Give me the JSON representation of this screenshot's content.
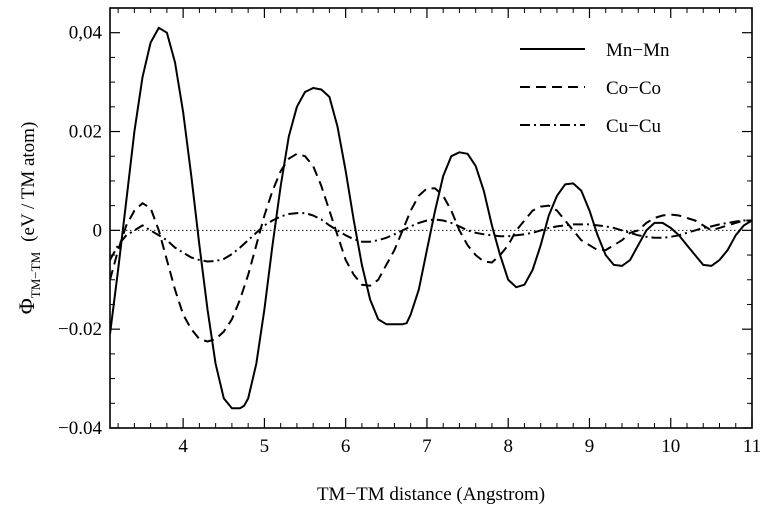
{
  "chart_data": {
    "type": "line",
    "xlabel": "TM−TM distance (Angstrom)",
    "ylabel": {
      "symbol": "Φ",
      "subscript": "TM−TM",
      "unit": "(eV / TM atom)"
    },
    "xlim": [
      3.1,
      11
    ],
    "ylim": [
      -0.04,
      0.045
    ],
    "x_ticks": [
      4,
      5,
      6,
      7,
      8,
      9,
      10,
      11
    ],
    "y_ticks": [
      -0.04,
      -0.02,
      0,
      0.02,
      0.04
    ],
    "x_tick_labels": [
      "4",
      "5",
      "6",
      "7",
      "8",
      "9",
      "10",
      "11"
    ],
    "y_tick_labels": [
      "−0.04",
      "−0.02",
      "0",
      "0.02",
      "0,04"
    ],
    "zero_line": true,
    "grid": false,
    "legend_position": "top-right",
    "series": [
      {
        "name": "Mn−Mn",
        "style": "solid",
        "color": "#000000",
        "x": [
          3.1,
          3.2,
          3.3,
          3.4,
          3.5,
          3.6,
          3.7,
          3.8,
          3.9,
          4.0,
          4.1,
          4.2,
          4.3,
          4.4,
          4.5,
          4.6,
          4.7,
          4.75,
          4.8,
          4.9,
          5.0,
          5.1,
          5.2,
          5.3,
          5.4,
          5.5,
          5.6,
          5.7,
          5.8,
          5.9,
          6.0,
          6.1,
          6.2,
          6.3,
          6.4,
          6.5,
          6.6,
          6.7,
          6.75,
          6.8,
          6.9,
          7.0,
          7.1,
          7.2,
          7.3,
          7.4,
          7.5,
          7.6,
          7.7,
          7.8,
          7.9,
          8.0,
          8.1,
          8.2,
          8.3,
          8.4,
          8.5,
          8.6,
          8.7,
          8.8,
          8.9,
          9.0,
          9.1,
          9.2,
          9.3,
          9.4,
          9.5,
          9.6,
          9.7,
          9.8,
          9.9,
          10.0,
          10.1,
          10.2,
          10.3,
          10.4,
          10.5,
          10.6,
          10.7,
          10.8,
          10.9,
          11.0
        ],
        "y": [
          -0.021,
          -0.008,
          0.006,
          0.02,
          0.031,
          0.038,
          0.041,
          0.04,
          0.034,
          0.024,
          0.011,
          -0.003,
          -0.016,
          -0.027,
          -0.034,
          -0.036,
          -0.036,
          -0.0355,
          -0.034,
          -0.027,
          -0.016,
          -0.003,
          0.009,
          0.019,
          0.025,
          0.028,
          0.0288,
          0.0285,
          0.027,
          0.021,
          0.012,
          0.002,
          -0.007,
          -0.014,
          -0.018,
          -0.019,
          -0.019,
          -0.019,
          -0.0188,
          -0.017,
          -0.012,
          -0.004,
          0.004,
          0.011,
          0.015,
          0.0158,
          0.0155,
          0.013,
          0.008,
          0.001,
          -0.005,
          -0.01,
          -0.0115,
          -0.011,
          -0.008,
          -0.003,
          0.003,
          0.007,
          0.0093,
          0.0095,
          0.008,
          0.004,
          -0.001,
          -0.005,
          -0.007,
          -0.0072,
          -0.006,
          -0.003,
          0.0,
          0.0015,
          0.0015,
          0.0005,
          -0.001,
          -0.003,
          -0.005,
          -0.007,
          -0.0072,
          -0.006,
          -0.004,
          -0.001,
          0.001,
          0.002
        ]
      },
      {
        "name": "Co−Co",
        "style": "dashed",
        "color": "#000000",
        "x": [
          3.1,
          3.2,
          3.3,
          3.4,
          3.5,
          3.6,
          3.7,
          3.8,
          3.9,
          4.0,
          4.1,
          4.2,
          4.3,
          4.4,
          4.5,
          4.6,
          4.7,
          4.8,
          4.9,
          5.0,
          5.1,
          5.2,
          5.3,
          5.4,
          5.5,
          5.6,
          5.7,
          5.8,
          5.9,
          6.0,
          6.1,
          6.2,
          6.3,
          6.4,
          6.5,
          6.6,
          6.7,
          6.8,
          6.9,
          7.0,
          7.1,
          7.2,
          7.3,
          7.4,
          7.5,
          7.6,
          7.7,
          7.8,
          7.9,
          8.0,
          8.1,
          8.2,
          8.3,
          8.4,
          8.5,
          8.6,
          8.7,
          8.8,
          8.9,
          9.0,
          9.1,
          9.2,
          9.3,
          9.4,
          9.5,
          9.6,
          9.7,
          9.8,
          9.9,
          10.0,
          10.1,
          10.2,
          10.3,
          10.4,
          10.5,
          10.6,
          10.7,
          10.8,
          10.9,
          11.0
        ],
        "y": [
          -0.01,
          -0.004,
          0.001,
          0.004,
          0.0055,
          0.0045,
          0.0,
          -0.006,
          -0.012,
          -0.017,
          -0.02,
          -0.022,
          -0.0225,
          -0.022,
          -0.0205,
          -0.018,
          -0.014,
          -0.009,
          -0.003,
          0.003,
          0.008,
          0.012,
          0.0145,
          0.0155,
          0.015,
          0.013,
          0.009,
          0.004,
          -0.001,
          -0.006,
          -0.009,
          -0.011,
          -0.0112,
          -0.01,
          -0.007,
          -0.004,
          0.0,
          0.004,
          0.007,
          0.0085,
          0.0085,
          0.007,
          0.004,
          0.0,
          -0.003,
          -0.005,
          -0.0063,
          -0.0065,
          -0.005,
          -0.003,
          0.0,
          0.002,
          0.004,
          0.0048,
          0.005,
          0.004,
          0.002,
          0.0,
          -0.002,
          -0.003,
          -0.004,
          -0.004,
          -0.003,
          -0.002,
          -0.0005,
          0.0,
          0.0015,
          0.0025,
          0.003,
          0.0032,
          0.003,
          0.0025,
          0.002,
          0.001,
          0.0,
          0.0005,
          0.001,
          0.0015,
          0.002,
          0.002
        ]
      },
      {
        "name": "Cu−Cu",
        "style": "dashdot",
        "color": "#000000",
        "x": [
          3.1,
          3.2,
          3.3,
          3.4,
          3.5,
          3.6,
          3.7,
          3.8,
          3.9,
          4.0,
          4.1,
          4.2,
          4.3,
          4.4,
          4.5,
          4.6,
          4.7,
          4.8,
          4.9,
          5.0,
          5.1,
          5.2,
          5.3,
          5.4,
          5.5,
          5.6,
          5.7,
          5.8,
          5.9,
          6.0,
          6.1,
          6.2,
          6.3,
          6.4,
          6.5,
          6.6,
          6.7,
          6.8,
          6.9,
          7.0,
          7.1,
          7.2,
          7.3,
          7.4,
          7.5,
          7.6,
          7.7,
          7.8,
          7.9,
          8.0,
          8.1,
          8.2,
          8.3,
          8.4,
          8.5,
          8.6,
          8.7,
          8.8,
          8.9,
          9.0,
          9.1,
          9.2,
          9.3,
          9.4,
          9.5,
          9.6,
          9.7,
          9.8,
          9.9,
          10.0,
          10.1,
          10.2,
          10.3,
          10.4,
          10.5,
          10.6,
          10.7,
          10.8,
          10.9,
          11.0
        ],
        "y": [
          -0.006,
          -0.003,
          -0.001,
          0.0,
          0.001,
          0.0,
          -0.001,
          -0.002,
          -0.0035,
          -0.0045,
          -0.0055,
          -0.006,
          -0.0063,
          -0.0062,
          -0.0058,
          -0.0048,
          -0.0035,
          -0.002,
          -0.0005,
          0.001,
          0.002,
          0.0028,
          0.0033,
          0.0035,
          0.0035,
          0.003,
          0.0022,
          0.001,
          0.0,
          -0.001,
          -0.0018,
          -0.0023,
          -0.0023,
          -0.002,
          -0.0015,
          -0.0008,
          0.0,
          0.0008,
          0.0015,
          0.002,
          0.0022,
          0.002,
          0.0015,
          0.0008,
          0.0,
          -0.0005,
          -0.0008,
          -0.001,
          -0.0012,
          -0.0012,
          -0.001,
          -0.0008,
          -0.0005,
          0.0,
          0.0005,
          0.0008,
          0.001,
          0.0012,
          0.0012,
          0.0012,
          0.001,
          0.0008,
          0.0005,
          0.0,
          -0.0005,
          -0.001,
          -0.0013,
          -0.0015,
          -0.0015,
          -0.0013,
          -0.001,
          -0.0005,
          0.0,
          0.0005,
          0.0008,
          0.0012,
          0.0015,
          0.0018,
          0.002,
          0.002
        ]
      }
    ]
  }
}
